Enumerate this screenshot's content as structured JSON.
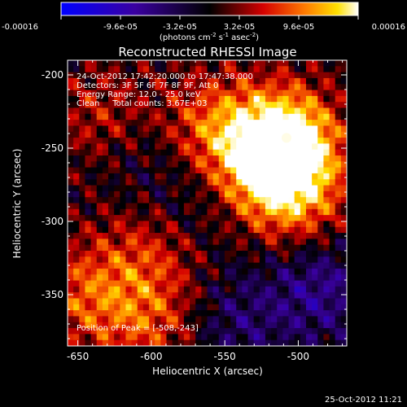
{
  "colorbar": {
    "min": -0.00016,
    "max": 0.00016,
    "tick_labels": [
      "-0.00016",
      "-9.6e-05",
      "-3.2e-05",
      "3.2e-05",
      "9.6e-05",
      "0.00016"
    ],
    "tick_values": [
      -0.00016,
      -9.6e-05,
      -3.2e-05,
      3.2e-05,
      9.6e-05,
      0.00016
    ],
    "units_text": "(photons cm",
    "units_exp1": "-2",
    "units_mid": " s",
    "units_exp2": "-1",
    "units_end": " asec",
    "units_exp3": "-2",
    "units_close": ")"
  },
  "chart_data": {
    "type": "heatmap",
    "title": "Reconstructed RHESSI Image",
    "xlabel": "Heliocentric X (arcsec)",
    "ylabel": "Heliocentric Y (arcsec)",
    "xlim": [
      -657,
      -467
    ],
    "ylim": [
      -385,
      -190
    ],
    "x_ticks": [
      -650,
      -600,
      -550,
      -500
    ],
    "x_tick_labels": [
      "-650",
      "-600",
      "-550",
      "-500"
    ],
    "y_ticks": [
      -200,
      -250,
      -300,
      -350
    ],
    "y_tick_labels": [
      "-200",
      "-250",
      "-300",
      "-350"
    ],
    "colormap": "rhessi-blue-black-red-yellow-white",
    "annotations": [
      "24-Oct-2012 17:42:20.000 to 17:47:38.000",
      "Detectors: 3F 5F 6F 7F 8F 9F, Att 0",
      "Energy Range: 12.0 - 25.0 keV",
      "Clean     Total counts: 3.67E+03"
    ],
    "peak_label": "Position of Peak = [-508,-243]",
    "peak": {
      "x": -508,
      "y": -243
    },
    "bright_regions": [
      {
        "x": -508,
        "y": -243,
        "intensity": 1.0
      },
      {
        "x": -520,
        "y": -262,
        "intensity": 0.85
      },
      {
        "x": -560,
        "y": -235,
        "intensity": 0.6
      },
      {
        "x": -500,
        "y": -285,
        "intensity": 0.55
      },
      {
        "x": -645,
        "y": -350,
        "intensity": 0.55
      },
      {
        "x": -600,
        "y": -370,
        "intensity": 0.5
      },
      {
        "x": -630,
        "y": -230,
        "intensity": 0.5
      },
      {
        "x": -600,
        "y": -320,
        "intensity": 0.45
      }
    ],
    "dark_regions": [
      {
        "x": -485,
        "y": -345,
        "intensity": -0.5
      },
      {
        "x": -545,
        "y": -370,
        "intensity": -0.35
      },
      {
        "x": -610,
        "y": -245,
        "intensity": -0.3
      },
      {
        "x": -575,
        "y": -290,
        "intensity": -0.25
      }
    ]
  },
  "footer": {
    "timestamp": "25-Oct-2012 11:21"
  }
}
